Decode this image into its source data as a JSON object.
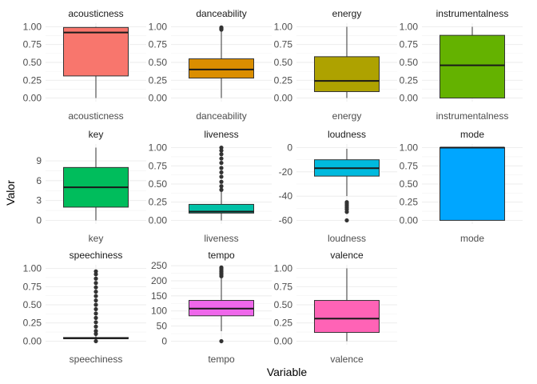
{
  "chart_data": {
    "type": "boxplot",
    "xlabel": "Variable",
    "ylabel": "Valor",
    "grid": true,
    "legend": "none",
    "facets": [
      {
        "name": "acousticness",
        "category": "acousticness",
        "color": "#F8766D",
        "ylim": [
          -0.05,
          1.05
        ],
        "ticks": [
          0,
          0.25,
          0.5,
          0.75,
          1
        ],
        "tick_labels": [
          "0.00",
          "0.25",
          "0.50",
          "0.75",
          "1.00"
        ],
        "stats": {
          "min": 0.0,
          "q1": 0.31,
          "median": 0.92,
          "q3": 0.99,
          "max": 1.0
        },
        "outliers": []
      },
      {
        "name": "danceability",
        "category": "danceability",
        "color": "#DB8E00",
        "ylim": [
          -0.05,
          1.05
        ],
        "ticks": [
          0,
          0.25,
          0.5,
          0.75,
          1
        ],
        "tick_labels": [
          "0.00",
          "0.25",
          "0.50",
          "0.75",
          "1.00"
        ],
        "stats": {
          "min": 0.0,
          "q1": 0.28,
          "median": 0.4,
          "q3": 0.55,
          "max": 0.95
        },
        "outliers": [
          0.96,
          0.97,
          0.98,
          0.99
        ]
      },
      {
        "name": "energy",
        "category": "energy",
        "color": "#AEA200",
        "ylim": [
          -0.05,
          1.05
        ],
        "ticks": [
          0,
          0.25,
          0.5,
          0.75,
          1
        ],
        "tick_labels": [
          "0.00",
          "0.25",
          "0.50",
          "0.75",
          "1.00"
        ],
        "stats": {
          "min": 0.0,
          "q1": 0.09,
          "median": 0.24,
          "q3": 0.58,
          "max": 1.0
        },
        "outliers": []
      },
      {
        "name": "instrumentalness",
        "category": "instrumentalness",
        "color": "#64B200",
        "ylim": [
          -0.05,
          1.05
        ],
        "ticks": [
          0,
          0.25,
          0.5,
          0.75,
          1
        ],
        "tick_labels": [
          "0.00",
          "0.25",
          "0.50",
          "0.75",
          "1.00"
        ],
        "stats": {
          "min": 0.0,
          "q1": 0.0,
          "median": 0.46,
          "q3": 0.88,
          "max": 1.0
        },
        "outliers": []
      },
      {
        "name": "key",
        "category": "key",
        "color": "#00BD5C",
        "ylim": [
          -0.55,
          11.55
        ],
        "ticks": [
          0,
          3,
          6,
          9
        ],
        "tick_labels": [
          "0",
          "3",
          "6",
          "9"
        ],
        "stats": {
          "min": 0,
          "q1": 2,
          "median": 5,
          "q3": 8,
          "max": 11
        },
        "outliers": []
      },
      {
        "name": "liveness",
        "category": "liveness",
        "color": "#00C1A7",
        "ylim": [
          -0.05,
          1.05
        ],
        "ticks": [
          0,
          0.25,
          0.5,
          0.75,
          1
        ],
        "tick_labels": [
          "0.00",
          "0.25",
          "0.50",
          "0.75",
          "1.00"
        ],
        "stats": {
          "min": 0.0,
          "q1": 0.1,
          "median": 0.12,
          "q3": 0.22,
          "max": 0.4
        },
        "outliers": [
          0.42,
          0.47,
          0.53,
          0.6,
          0.66,
          0.72,
          0.79,
          0.85,
          0.91,
          0.96,
          1.0
        ]
      },
      {
        "name": "loudness",
        "category": "loudness",
        "color": "#00BADE",
        "ylim": [
          -63,
          3
        ],
        "ticks": [
          -60,
          -40,
          -20,
          0
        ],
        "tick_labels": [
          "-60",
          "-40",
          "-20",
          "0"
        ],
        "stats": {
          "min": -40,
          "q1": -23.5,
          "median": -17,
          "q3": -10,
          "max": -1
        },
        "outliers": [
          -45,
          -46.5,
          -48,
          -49.5,
          -51,
          -53,
          -60
        ]
      },
      {
        "name": "mode",
        "category": "mode",
        "color": "#00A6FF",
        "ylim": [
          -0.05,
          1.05
        ],
        "ticks": [
          0,
          0.25,
          0.5,
          0.75,
          1
        ],
        "tick_labels": [
          "0.00",
          "0.25",
          "0.50",
          "0.75",
          "1.00"
        ],
        "stats": {
          "min": 0,
          "q1": 0,
          "median": 1,
          "q3": 1,
          "max": 1
        },
        "outliers": []
      },
      {
        "name": "speechiness",
        "category": "speechiness",
        "color": "#B385FF",
        "ylim": [
          -0.05,
          1.05
        ],
        "ticks": [
          0,
          0.25,
          0.5,
          0.75,
          1
        ],
        "tick_labels": [
          "0.00",
          "0.25",
          "0.50",
          "0.75",
          "1.00"
        ],
        "stats": {
          "min": 0.02,
          "q1": 0.035,
          "median": 0.04,
          "q3": 0.05,
          "max": 0.07
        },
        "outliers": [
          0.0,
          0.1,
          0.14,
          0.2,
          0.26,
          0.32,
          0.38,
          0.44,
          0.5,
          0.56,
          0.62,
          0.68,
          0.74,
          0.8,
          0.86,
          0.92,
          0.96
        ]
      },
      {
        "name": "tempo",
        "category": "tempo",
        "color": "#EF67EB",
        "ylim": [
          -12,
          253
        ],
        "ticks": [
          0,
          50,
          100,
          150,
          200,
          250
        ],
        "tick_labels": [
          "0",
          "50",
          "100",
          "150",
          "200",
          "250"
        ],
        "stats": {
          "min": 33,
          "q1": 84,
          "median": 108,
          "q3": 135,
          "max": 210
        },
        "outliers": [
          0,
          215,
          220,
          225,
          230,
          235,
          240,
          244
        ]
      },
      {
        "name": "valence",
        "category": "valence",
        "color": "#FF63B6",
        "ylim": [
          -0.05,
          1.05
        ],
        "ticks": [
          0,
          0.25,
          0.5,
          0.75,
          1
        ],
        "tick_labels": [
          "0.00",
          "0.25",
          "0.50",
          "0.75",
          "1.00"
        ],
        "stats": {
          "min": 0.0,
          "q1": 0.12,
          "median": 0.31,
          "q3": 0.56,
          "max": 1.0
        },
        "outliers": []
      }
    ]
  }
}
